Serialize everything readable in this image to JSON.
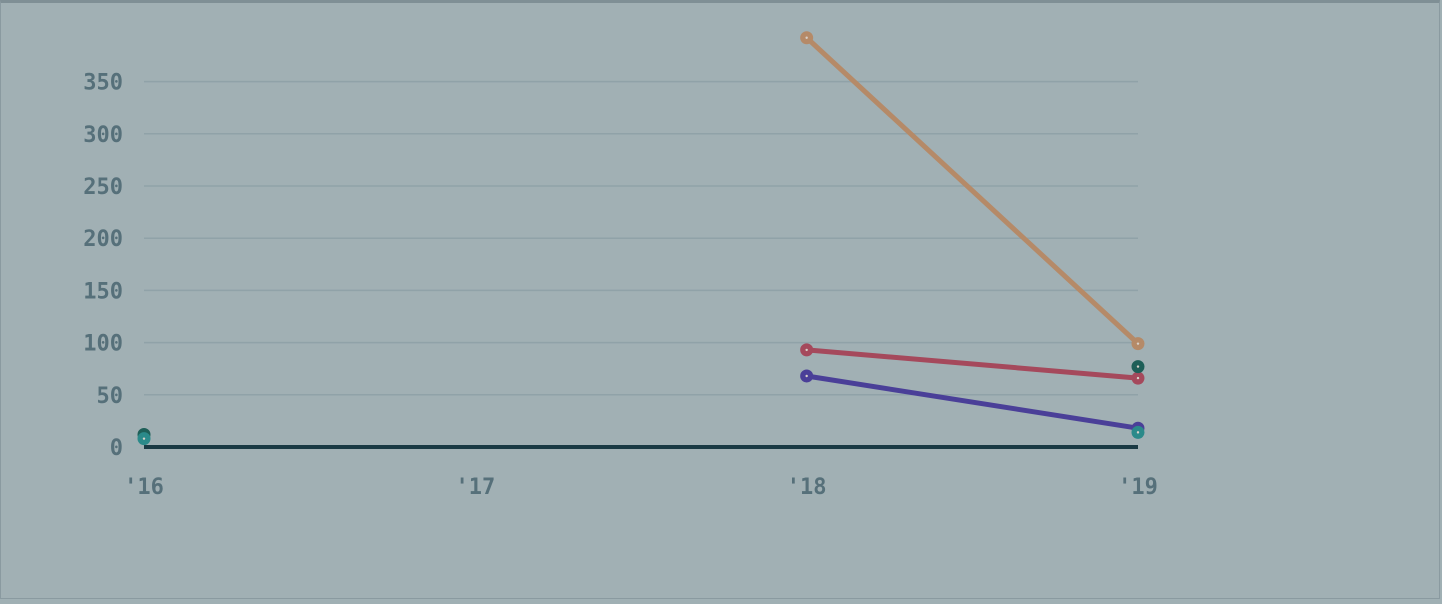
{
  "chart_data": {
    "type": "line",
    "x_tick_labels": [
      "'16",
      "'17",
      "'18",
      "'19"
    ],
    "x": [
      2016,
      2017,
      2018,
      2019
    ],
    "xlim": [
      2016,
      2019
    ],
    "ylim": [
      0,
      350
    ],
    "y_ticks": [
      0,
      50,
      100,
      150,
      200,
      250,
      300,
      350
    ],
    "grid": true,
    "series": [
      {
        "color": "#b58a68",
        "values": [
          null,
          null,
          392,
          99
        ]
      },
      {
        "color": "#a5495c",
        "values": [
          null,
          null,
          93,
          66
        ]
      },
      {
        "color": "#4a3f98",
        "values": [
          null,
          null,
          68,
          18
        ]
      },
      {
        "color": "#1e5f58",
        "values": [
          12,
          null,
          null,
          77
        ]
      },
      {
        "color": "#2b8a8a",
        "values": [
          8,
          null,
          null,
          14
        ]
      }
    ],
    "colors": {
      "background": "#a1b0b4",
      "gridline": "#90a2a8",
      "baseline": "#1a3a44",
      "tick_text": "#56707a"
    }
  }
}
